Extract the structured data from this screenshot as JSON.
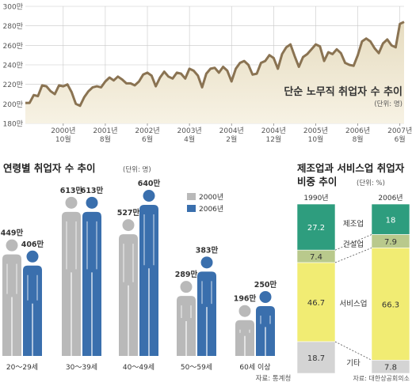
{
  "colors": {
    "line": "#8a7352",
    "area_top": "#e6dcc0",
    "area_bottom": "#f7f2e4",
    "grid": "#c8c8c8",
    "gray": "#b9b9b9",
    "blue": "#3a6fad",
    "green": "#2e9d7e",
    "olive": "#b9c98c",
    "yellow": "#f1ec73",
    "lightgray": "#d4d4d4",
    "text": "#222222",
    "muted": "#555555"
  },
  "chart_data": [
    {
      "type": "line",
      "title": "단순 노무직 취업자 수 추이",
      "unit": "(단위: 명)",
      "y_tick_labels": [
        "300만",
        "280만",
        "260만",
        "240만",
        "220만",
        "200만",
        "180만"
      ],
      "y_tick_values": [
        300,
        280,
        260,
        240,
        220,
        200,
        180
      ],
      "ylim": [
        180,
        300
      ],
      "xlim": [
        0,
        90
      ],
      "x_ticks": [
        {
          "x": 9,
          "year": "2000년",
          "month": "10월"
        },
        {
          "x": 19,
          "year": "2001년",
          "month": "8월"
        },
        {
          "x": 29,
          "year": "2002년",
          "month": "6월"
        },
        {
          "x": 39,
          "year": "2003년",
          "month": "4월"
        },
        {
          "x": 49,
          "year": "2004년",
          "month": "2월"
        },
        {
          "x": 59,
          "year": "2004년",
          "month": "12월"
        },
        {
          "x": 69,
          "year": "2005년",
          "month": "10월"
        },
        {
          "x": 79,
          "year": "2006년",
          "month": "8월"
        },
        {
          "x": 89,
          "year": "2007년",
          "month": "6월"
        }
      ],
      "values": [
        201,
        201,
        209,
        208,
        219,
        218,
        213,
        210,
        219,
        218,
        220,
        212,
        200,
        198,
        207,
        213,
        217,
        218,
        217,
        223,
        227,
        224,
        228,
        225,
        221,
        221,
        219,
        223,
        230,
        232,
        229,
        218,
        227,
        233,
        228,
        226,
        232,
        231,
        226,
        236,
        234,
        229,
        217,
        231,
        236,
        237,
        232,
        238,
        234,
        223,
        236,
        242,
        244,
        240,
        230,
        231,
        242,
        244,
        250,
        247,
        236,
        251,
        258,
        261,
        249,
        238,
        248,
        251,
        256,
        261,
        259,
        244,
        253,
        251,
        256,
        252,
        242,
        240,
        239,
        250,
        264,
        267,
        264,
        257,
        252,
        262,
        266,
        260,
        258,
        282,
        284
      ],
      "grid": true
    },
    {
      "type": "bar",
      "title": "연령별 취업자 수 추이",
      "unit": "(단위: 명)",
      "categories": [
        "20～29세",
        "30～39세",
        "40～49세",
        "50～59세",
        "60세 이상"
      ],
      "series": [
        {
          "name": "2000년",
          "values": [
            449,
            613,
            527,
            289,
            196
          ],
          "labels": [
            "449만",
            "613만",
            "527만",
            "289만",
            "196만"
          ]
        },
        {
          "name": "2006년",
          "values": [
            406,
            613,
            640,
            383,
            250
          ],
          "labels": [
            "406만",
            "613만",
            "640만",
            "383만",
            "250만"
          ]
        }
      ],
      "ylim": [
        0,
        640
      ],
      "legend_placement": "top-right",
      "source": "자료: 통계청"
    },
    {
      "type": "bar",
      "stacked": true,
      "title_line1": "제조업과 서비스업 취업자",
      "title_line2": "비중 추이",
      "unit": "(단위: %)",
      "columns": [
        "1990년",
        "2006년"
      ],
      "segments": [
        {
          "name": "제조업",
          "values": [
            27.2,
            18
          ],
          "labels": [
            "27.2",
            "18"
          ]
        },
        {
          "name": "건설업",
          "values": [
            7.4,
            7.9
          ],
          "labels": [
            "7.4",
            "7.9"
          ]
        },
        {
          "name": "서비스업",
          "values": [
            46.7,
            66.3
          ],
          "labels": [
            "46.7",
            "66.3"
          ]
        },
        {
          "name": "기타",
          "values": [
            18.7,
            7.8
          ],
          "labels": [
            "18.7",
            "7.8"
          ]
        }
      ],
      "source": "자료: 대한상공회의소"
    }
  ]
}
